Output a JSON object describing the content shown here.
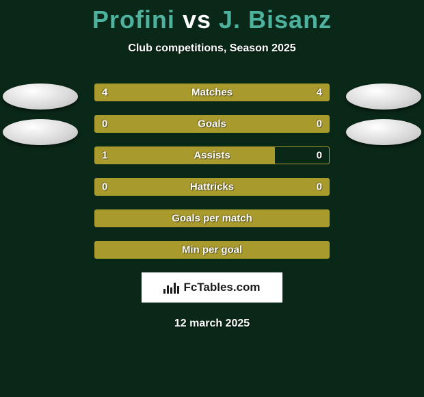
{
  "title": {
    "player1": "Profini",
    "vs": "vs",
    "player2": "J. Bisanz"
  },
  "subtitle": "Club competitions, Season 2025",
  "chart": {
    "type": "comparison-bars",
    "bar_color": "#a89a2d",
    "border_color": "#a89a2d",
    "background_color": "#0a2818",
    "text_color": "#ffffff",
    "title_color_accent": "#4db39e",
    "rows": [
      {
        "label": "Matches",
        "left": "4",
        "right": "4",
        "left_pct": 50,
        "right_pct": 50,
        "show_vals": true
      },
      {
        "label": "Goals",
        "left": "0",
        "right": "0",
        "left_pct": 50,
        "right_pct": 50,
        "show_vals": true
      },
      {
        "label": "Assists",
        "left": "1",
        "right": "0",
        "left_pct": 77,
        "right_pct": 0,
        "show_vals": true
      },
      {
        "label": "Hattricks",
        "left": "0",
        "right": "0",
        "left_pct": 50,
        "right_pct": 50,
        "show_vals": true
      },
      {
        "label": "Goals per match",
        "left": "",
        "right": "",
        "left_pct": 100,
        "right_pct": 0,
        "show_vals": false
      },
      {
        "label": "Min per goal",
        "left": "",
        "right": "",
        "left_pct": 100,
        "right_pct": 0,
        "show_vals": false
      }
    ]
  },
  "avatars": {
    "left_rows": [
      0,
      1
    ],
    "right_rows": [
      0,
      1
    ]
  },
  "brand": {
    "text": "FcTables.com",
    "icon_bars": [
      7,
      12,
      9,
      16,
      11
    ]
  },
  "date": "12 march 2025"
}
